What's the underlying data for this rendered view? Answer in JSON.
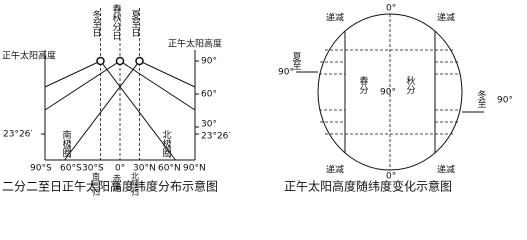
{
  "left_diagram": {
    "caption": "二分二至日正午太阳高度纬度分布示意图",
    "curve_labels": [
      "冬至日",
      "春秋分日",
      "夏至日"
    ],
    "axis_title_left": "正午太阳高度",
    "axis_title_right": "正午太阳高度",
    "left_ticks": [
      "23°26′"
    ],
    "right_ticks": [
      "90°",
      "60°",
      "30°",
      "23°26′"
    ],
    "x_ticks": [
      "90°S",
      "60°S",
      "30°S",
      "0°",
      "30°N",
      "60°N",
      "90°N"
    ],
    "latitude_lines": [
      "南极圈",
      "南回归线",
      "赤道",
      "北回归线",
      "北极圈"
    ]
  },
  "right_diagram": {
    "caption": "正午太阳高度随纬度变化示意图",
    "top_label": "0°",
    "bottom_label": "0°",
    "center_label": "90°",
    "left_angle": "90°",
    "right_angle": "90°",
    "left_season": "夏至",
    "right_season": "冬至",
    "center_left": "春分",
    "center_right": "秋分",
    "trend_labels": [
      "递减",
      "递减",
      "递减",
      "递减"
    ]
  }
}
